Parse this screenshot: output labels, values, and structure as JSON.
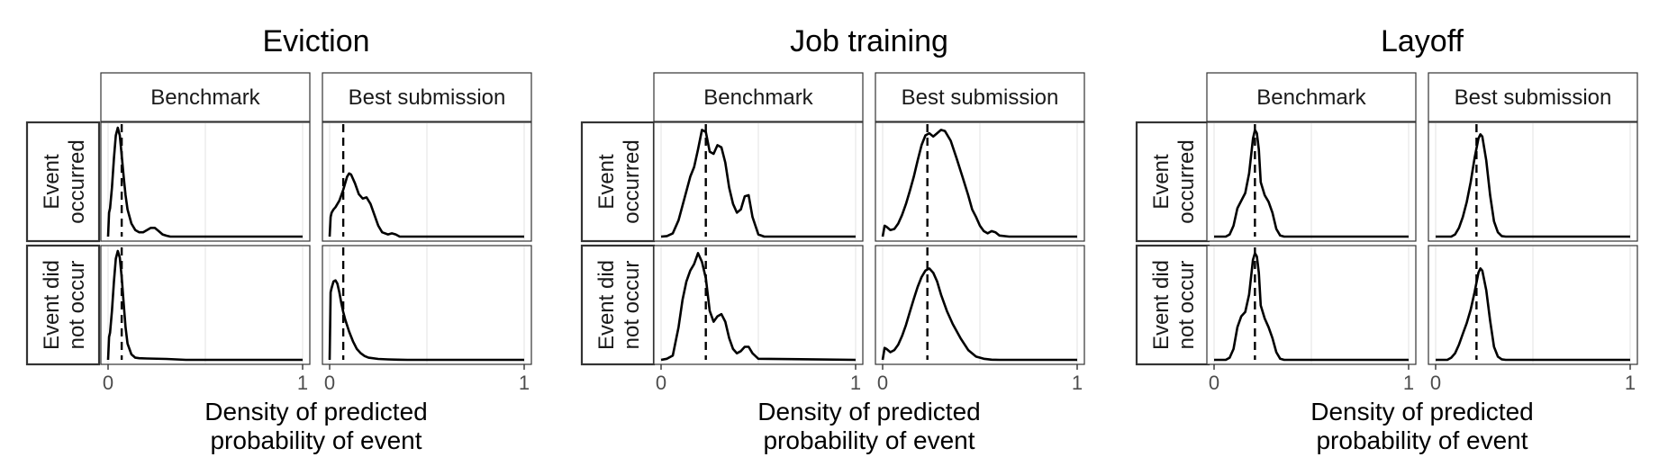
{
  "strip_labels": {
    "columns": [
      "Benchmark",
      "Best submission"
    ],
    "rows": [
      [
        "Event",
        "occurred"
      ],
      [
        "Event did",
        "not occur"
      ]
    ]
  },
  "xlabel": [
    "Density of predicted",
    "probability of event"
  ],
  "colors": {
    "line": "#000000",
    "grid": "#ebebeb",
    "strip_border": "#333333"
  },
  "chart_data": [
    {
      "type": "line",
      "title": "Eviction",
      "xlim": [
        0,
        1
      ],
      "xticks": [
        0,
        1
      ],
      "vline_x": 0.07,
      "panels": {
        "benchmark_occurred": {
          "x": [
            0,
            0.005,
            0.01,
            0.02,
            0.03,
            0.04,
            0.05,
            0.06,
            0.07,
            0.08,
            0.09,
            0.1,
            0.12,
            0.14,
            0.16,
            0.18,
            0.2,
            0.22,
            0.24,
            0.26,
            0.28,
            0.3,
            0.32,
            1
          ],
          "y": [
            0.0,
            0.22,
            0.26,
            0.45,
            0.72,
            0.93,
            1.0,
            0.93,
            0.75,
            0.55,
            0.38,
            0.25,
            0.12,
            0.06,
            0.04,
            0.04,
            0.06,
            0.08,
            0.08,
            0.05,
            0.02,
            0.008,
            0,
            0
          ]
        },
        "best_occurred": {
          "x": [
            0,
            0.005,
            0.01,
            0.02,
            0.03,
            0.05,
            0.07,
            0.09,
            0.1,
            0.11,
            0.13,
            0.15,
            0.17,
            0.19,
            0.21,
            0.23,
            0.25,
            0.27,
            0.3,
            0.32,
            0.34,
            0.36,
            0.4,
            1
          ],
          "y": [
            0.0,
            0.18,
            0.22,
            0.25,
            0.27,
            0.33,
            0.43,
            0.55,
            0.58,
            0.57,
            0.49,
            0.39,
            0.35,
            0.36,
            0.3,
            0.2,
            0.1,
            0.04,
            0.02,
            0.03,
            0.02,
            0.0,
            0,
            0
          ]
        },
        "benchmark_not": {
          "x": [
            0,
            0.005,
            0.01,
            0.02,
            0.03,
            0.04,
            0.05,
            0.06,
            0.07,
            0.08,
            0.09,
            0.1,
            0.12,
            0.14,
            0.16,
            0.2,
            0.3,
            0.4,
            1
          ],
          "y": [
            0.0,
            0.21,
            0.25,
            0.45,
            0.72,
            0.93,
            1.0,
            0.94,
            0.76,
            0.52,
            0.3,
            0.15,
            0.05,
            0.02,
            0.015,
            0.012,
            0.008,
            0,
            0
          ]
        },
        "best_not": {
          "x": [
            0,
            0.005,
            0.01,
            0.02,
            0.03,
            0.04,
            0.05,
            0.06,
            0.07,
            0.08,
            0.1,
            0.12,
            0.14,
            0.16,
            0.18,
            0.2,
            0.25,
            0.3,
            0.35,
            0.4,
            1
          ],
          "y": [
            0.0,
            0.62,
            0.66,
            0.72,
            0.73,
            0.7,
            0.62,
            0.52,
            0.44,
            0.37,
            0.26,
            0.17,
            0.1,
            0.06,
            0.035,
            0.02,
            0.008,
            0.004,
            0.002,
            0,
            0
          ]
        }
      }
    },
    {
      "type": "line",
      "title": "Job training",
      "xlim": [
        0,
        1
      ],
      "xticks": [
        0,
        1
      ],
      "vline_x": 0.23,
      "panels": {
        "benchmark_occurred": {
          "x": [
            0,
            0.03,
            0.06,
            0.09,
            0.12,
            0.15,
            0.17,
            0.19,
            0.21,
            0.23,
            0.25,
            0.27,
            0.29,
            0.31,
            0.33,
            0.35,
            0.37,
            0.39,
            0.41,
            0.43,
            0.45,
            0.47,
            0.5,
            0.53,
            1
          ],
          "y": [
            0,
            0.005,
            0.03,
            0.15,
            0.35,
            0.55,
            0.64,
            0.8,
            0.98,
            0.96,
            0.78,
            0.76,
            0.84,
            0.82,
            0.68,
            0.45,
            0.3,
            0.22,
            0.25,
            0.37,
            0.38,
            0.18,
            0.02,
            0,
            0
          ]
        },
        "best_occurred": {
          "x": [
            0,
            0.01,
            0.02,
            0.04,
            0.06,
            0.08,
            0.1,
            0.12,
            0.14,
            0.16,
            0.18,
            0.2,
            0.22,
            0.24,
            0.26,
            0.28,
            0.3,
            0.32,
            0.35,
            0.38,
            0.41,
            0.44,
            0.46,
            0.48,
            0.5,
            0.52,
            0.54,
            0.56,
            0.58,
            0.6,
            0.65,
            1
          ],
          "y": [
            0,
            0.1,
            0.09,
            0.06,
            0.07,
            0.12,
            0.2,
            0.3,
            0.42,
            0.55,
            0.7,
            0.84,
            0.93,
            0.95,
            0.92,
            0.95,
            0.98,
            0.97,
            0.88,
            0.72,
            0.55,
            0.38,
            0.25,
            0.18,
            0.1,
            0.05,
            0.03,
            0.05,
            0.04,
            0.01,
            0,
            0
          ]
        },
        "benchmark_not": {
          "x": [
            0,
            0.03,
            0.06,
            0.09,
            0.11,
            0.13,
            0.15,
            0.17,
            0.19,
            0.21,
            0.23,
            0.25,
            0.27,
            0.29,
            0.31,
            0.33,
            0.35,
            0.37,
            0.39,
            0.41,
            0.43,
            0.45,
            0.47,
            0.5,
            1
          ],
          "y": [
            0,
            0.01,
            0.04,
            0.3,
            0.55,
            0.72,
            0.82,
            0.88,
            0.98,
            0.9,
            0.75,
            0.45,
            0.35,
            0.4,
            0.42,
            0.35,
            0.2,
            0.1,
            0.06,
            0.08,
            0.12,
            0.12,
            0.06,
            0.01,
            0
          ]
        },
        "best_not": {
          "x": [
            0,
            0.01,
            0.02,
            0.04,
            0.06,
            0.08,
            0.1,
            0.12,
            0.14,
            0.16,
            0.18,
            0.2,
            0.22,
            0.24,
            0.26,
            0.28,
            0.3,
            0.33,
            0.36,
            0.4,
            0.44,
            0.48,
            0.52,
            0.56,
            0.6,
            1
          ],
          "y": [
            0,
            0.11,
            0.1,
            0.07,
            0.09,
            0.14,
            0.22,
            0.32,
            0.44,
            0.56,
            0.67,
            0.76,
            0.82,
            0.84,
            0.8,
            0.72,
            0.6,
            0.45,
            0.33,
            0.2,
            0.09,
            0.03,
            0.01,
            0.002,
            0,
            0
          ]
        }
      }
    },
    {
      "type": "line",
      "title": "Layoff",
      "xlim": [
        0,
        1
      ],
      "xticks": [
        0,
        1
      ],
      "vline_x": 0.21,
      "panels": {
        "benchmark_occurred": {
          "x": [
            0,
            0.06,
            0.08,
            0.1,
            0.12,
            0.14,
            0.16,
            0.18,
            0.2,
            0.21,
            0.22,
            0.23,
            0.24,
            0.26,
            0.28,
            0.3,
            0.32,
            0.34,
            0.36,
            0.38,
            1
          ],
          "y": [
            0,
            0,
            0.02,
            0.1,
            0.26,
            0.33,
            0.4,
            0.58,
            0.9,
            0.98,
            0.95,
            0.8,
            0.5,
            0.38,
            0.32,
            0.22,
            0.07,
            0.01,
            0,
            0,
            0
          ]
        },
        "best_occurred": {
          "x": [
            0,
            0.08,
            0.1,
            0.12,
            0.14,
            0.16,
            0.18,
            0.2,
            0.22,
            0.23,
            0.24,
            0.26,
            0.28,
            0.3,
            0.32,
            0.34,
            0.36,
            1
          ],
          "y": [
            0,
            0,
            0.02,
            0.08,
            0.18,
            0.32,
            0.5,
            0.72,
            0.9,
            0.94,
            0.92,
            0.7,
            0.38,
            0.14,
            0.04,
            0.005,
            0,
            0
          ]
        },
        "benchmark_not": {
          "x": [
            0,
            0.06,
            0.08,
            0.1,
            0.12,
            0.14,
            0.16,
            0.18,
            0.2,
            0.21,
            0.22,
            0.23,
            0.24,
            0.26,
            0.28,
            0.3,
            0.32,
            0.34,
            0.36,
            0.38,
            1
          ],
          "y": [
            0,
            0,
            0.02,
            0.1,
            0.3,
            0.4,
            0.44,
            0.6,
            0.92,
            0.98,
            0.95,
            0.8,
            0.5,
            0.38,
            0.3,
            0.2,
            0.07,
            0.01,
            0,
            0,
            0
          ]
        },
        "best_not": {
          "x": [
            0,
            0.06,
            0.08,
            0.1,
            0.12,
            0.14,
            0.16,
            0.18,
            0.2,
            0.22,
            0.23,
            0.24,
            0.26,
            0.28,
            0.3,
            0.32,
            0.34,
            0.36,
            1
          ],
          "y": [
            0,
            0,
            0.02,
            0.06,
            0.14,
            0.24,
            0.34,
            0.46,
            0.62,
            0.8,
            0.84,
            0.82,
            0.64,
            0.36,
            0.12,
            0.03,
            0.005,
            0,
            0
          ]
        }
      }
    }
  ]
}
